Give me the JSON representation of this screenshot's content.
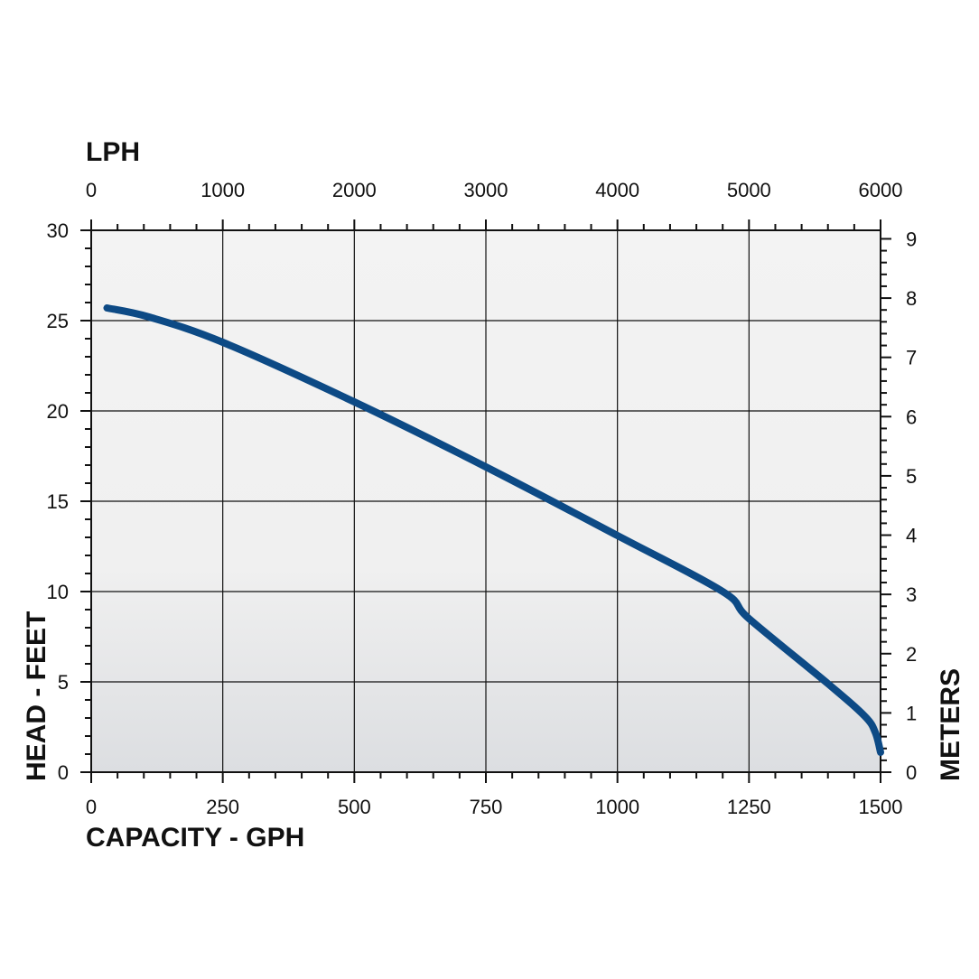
{
  "chart_data": {
    "type": "line",
    "top_axis_title": "LPH",
    "top_ticks": [
      "0",
      "1000",
      "2000",
      "3000",
      "4000",
      "5000",
      "6000"
    ],
    "xlabel": "CAPACITY - GPH",
    "x_ticks": [
      "0",
      "250",
      "500",
      "750",
      "1000",
      "1250",
      "1500"
    ],
    "xlim": [
      0,
      1500
    ],
    "ylabel": "HEAD - FEET",
    "y_ticks": [
      "0",
      "5",
      "10",
      "15",
      "20",
      "25",
      "30"
    ],
    "ylim": [
      0,
      30
    ],
    "right_axis_title": "METERS",
    "right_ticks": [
      "0",
      "1",
      "2",
      "3",
      "4",
      "5",
      "6",
      "7",
      "8",
      "9"
    ],
    "grid": true,
    "series": [
      {
        "color": "#0d4a85",
        "x": [
          30,
          110,
          250,
          500,
          750,
          1000,
          1200,
          1250,
          1400,
          1470,
          1490,
          1500
        ],
        "y": [
          25.7,
          25.2,
          23.8,
          20.5,
          16.9,
          13.1,
          10.0,
          8.5,
          4.9,
          3.1,
          2.2,
          1.1
        ]
      }
    ]
  }
}
